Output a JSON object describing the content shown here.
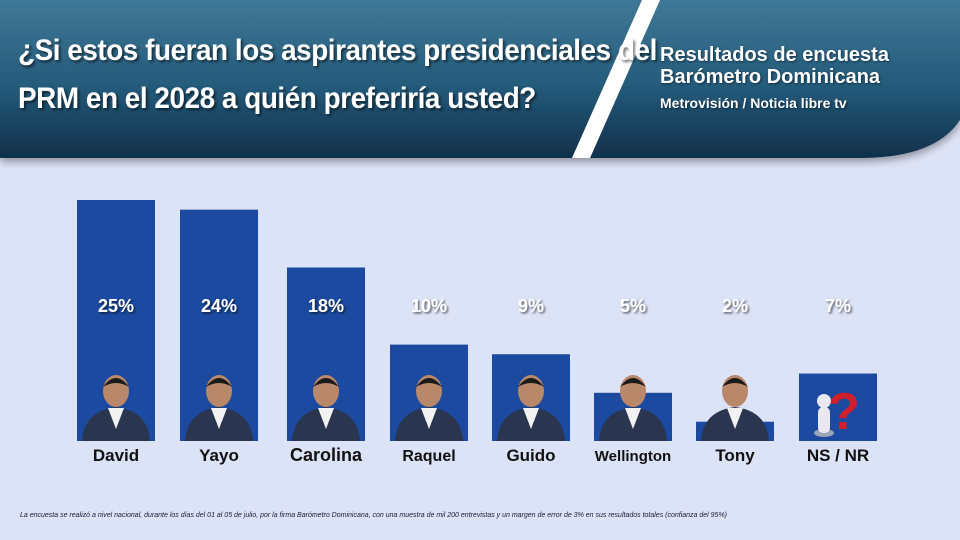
{
  "header": {
    "title_line1": "¿Si estos fueran los aspirantes presidenciales del",
    "title_line2": "PRM en el 2028 a quién preferiría usted?",
    "source_line1": "Resultados de encuesta",
    "source_line2": "Barómetro Dominicana",
    "source_line3": "Metrovisión / Noticia libre tv"
  },
  "colors": {
    "banner": "#1d4f6e",
    "bar": "#1b4aa0",
    "background": "#dde3f6"
  },
  "chart_data": {
    "type": "bar",
    "categories": [
      "David",
      "Yayo",
      "Carolina",
      "Raquel",
      "Guido",
      "Wellington",
      "Tony",
      "NS / NR"
    ],
    "values": [
      25,
      24,
      18,
      10,
      9,
      5,
      2,
      7
    ],
    "value_labels": [
      "25%",
      "24%",
      "18%",
      "10%",
      "9%",
      "5%",
      "2%",
      "7%"
    ],
    "ylim": [
      0,
      25
    ],
    "grid": false,
    "legend": "none"
  },
  "footnote": "La encuesta se realizó a nivel nacional, durante los días del 01 al 05 de julio, por la firma Barómetro Dominicana, con una muestra de mil 200 entrevistas y un margen de error de 3% en sus resultados totales (confianza del 95%)"
}
